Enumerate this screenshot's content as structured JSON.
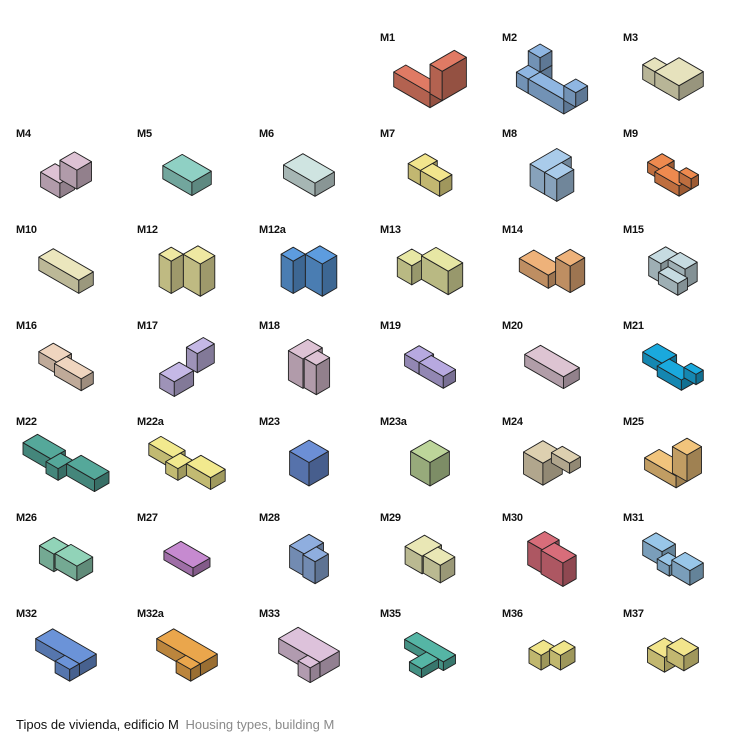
{
  "caption": {
    "spanish": "Tipos de vivienda, edificio M",
    "english": "Housing types, building M"
  },
  "types": [
    {
      "label": "M1",
      "color": "#e07a64"
    },
    {
      "label": "M2",
      "color": "#8fb6e2"
    },
    {
      "label": "M3",
      "color": "#e6e2bd"
    },
    {
      "label": "M4",
      "color": "#ddc2d4"
    },
    {
      "label": "M5",
      "color": "#8fd0c4"
    },
    {
      "label": "M6",
      "color": "#cfe4e1"
    },
    {
      "label": "M7",
      "color": "#f2e58d"
    },
    {
      "label": "M8",
      "color": "#a9cbea"
    },
    {
      "label": "M9",
      "color": "#ee8a4f"
    },
    {
      "label": "M10",
      "color": "#ebe6bd"
    },
    {
      "label": "M12",
      "color": "#efe8a2"
    },
    {
      "label": "M12a",
      "color": "#5d9cdf"
    },
    {
      "label": "M13",
      "color": "#e7e7a4"
    },
    {
      "label": "M14",
      "color": "#eeb27a"
    },
    {
      "label": "M15",
      "color": "#c6dbe1"
    },
    {
      "label": "M16",
      "color": "#efd5bf"
    },
    {
      "label": "M17",
      "color": "#c5b8e6"
    },
    {
      "label": "M18",
      "color": "#ddc2d4"
    },
    {
      "label": "M19",
      "color": "#b7a9e0"
    },
    {
      "label": "M20",
      "color": "#ddc4d2"
    },
    {
      "label": "M21",
      "color": "#1aa9dd"
    },
    {
      "label": "M22",
      "color": "#55a89a"
    },
    {
      "label": "M22a",
      "color": "#f2e98e"
    },
    {
      "label": "M23",
      "color": "#6c8fd6"
    },
    {
      "label": "M23a",
      "color": "#bdd59a"
    },
    {
      "label": "M24",
      "color": "#ddd0b0"
    },
    {
      "label": "M25",
      "color": "#f1c47c"
    },
    {
      "label": "M26",
      "color": "#91d3b8"
    },
    {
      "label": "M27",
      "color": "#c68ad0"
    },
    {
      "label": "M28",
      "color": "#8faedf"
    },
    {
      "label": "M29",
      "color": "#e9e7b5"
    },
    {
      "label": "M30",
      "color": "#d86d7a"
    },
    {
      "label": "M31",
      "color": "#98c6e8"
    },
    {
      "label": "M32",
      "color": "#6b93d8"
    },
    {
      "label": "M32a",
      "color": "#eaa64c"
    },
    {
      "label": "M33",
      "color": "#ddc2db"
    },
    {
      "label": "M35",
      "color": "#55b5a5"
    },
    {
      "label": "M36",
      "color": "#f0e58a"
    },
    {
      "label": "M37",
      "color": "#f2e58c"
    }
  ]
}
